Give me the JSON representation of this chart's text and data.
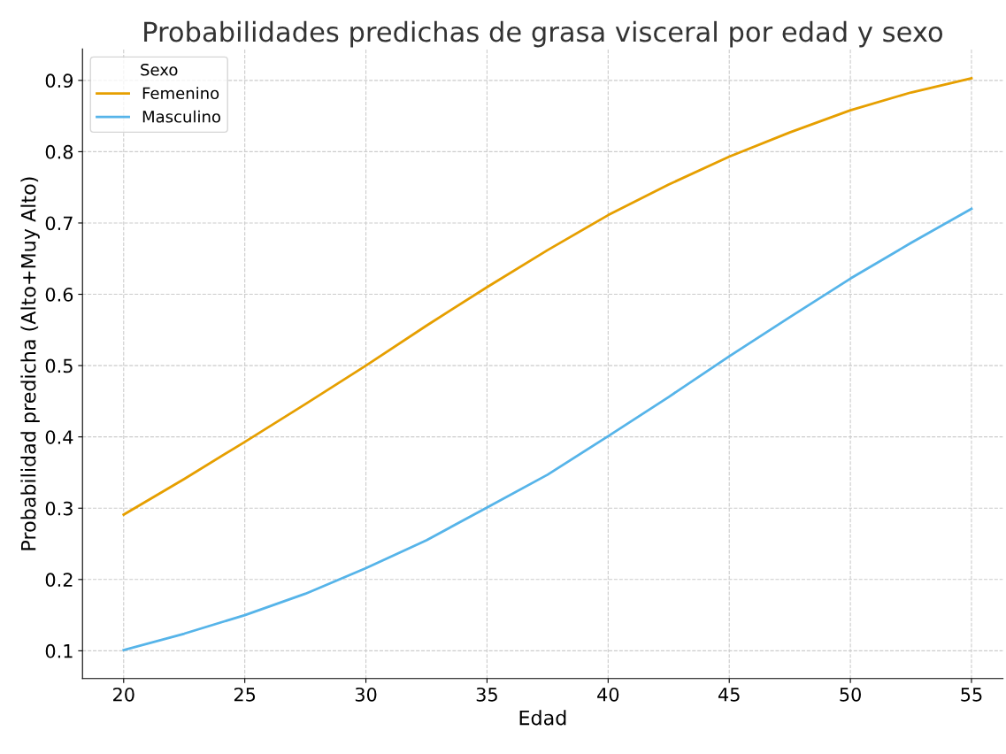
{
  "chart_data": {
    "type": "line",
    "title": "Probabilidades predichas de grasa visceral por edad y sexo",
    "xlabel": "Edad",
    "ylabel": "Probabilidad predicha (Alto+Muy Alto)",
    "legend_title": "Sexo",
    "x": [
      20,
      22.5,
      25,
      27.5,
      30,
      32.5,
      35,
      37.5,
      40,
      42.5,
      45,
      47.5,
      50,
      52.5,
      55
    ],
    "series": [
      {
        "name": "Femenino",
        "color": "#e69f00",
        "values": [
          0.291,
          0.341,
          0.393,
          0.446,
          0.5,
          0.556,
          0.61,
          0.662,
          0.711,
          0.754,
          0.793,
          0.827,
          0.858,
          0.883,
          0.903
        ]
      },
      {
        "name": "Masculino",
        "color": "#56b4e9",
        "values": [
          0.101,
          0.124,
          0.15,
          0.18,
          0.216,
          0.255,
          0.301,
          0.347,
          0.401,
          0.456,
          0.513,
          0.568,
          0.622,
          0.672,
          0.72
        ]
      }
    ],
    "xlim": [
      18.3,
      56.3
    ],
    "ylim": [
      0.061,
      0.944
    ],
    "xticks": [
      20,
      25,
      30,
      35,
      40,
      45,
      50,
      55
    ],
    "yticks": [
      0.1,
      0.2,
      0.3,
      0.4,
      0.5,
      0.6,
      0.7,
      0.8,
      0.9
    ],
    "grid": true,
    "legend": "top left",
    "line_style": "solid",
    "marker": "none"
  }
}
